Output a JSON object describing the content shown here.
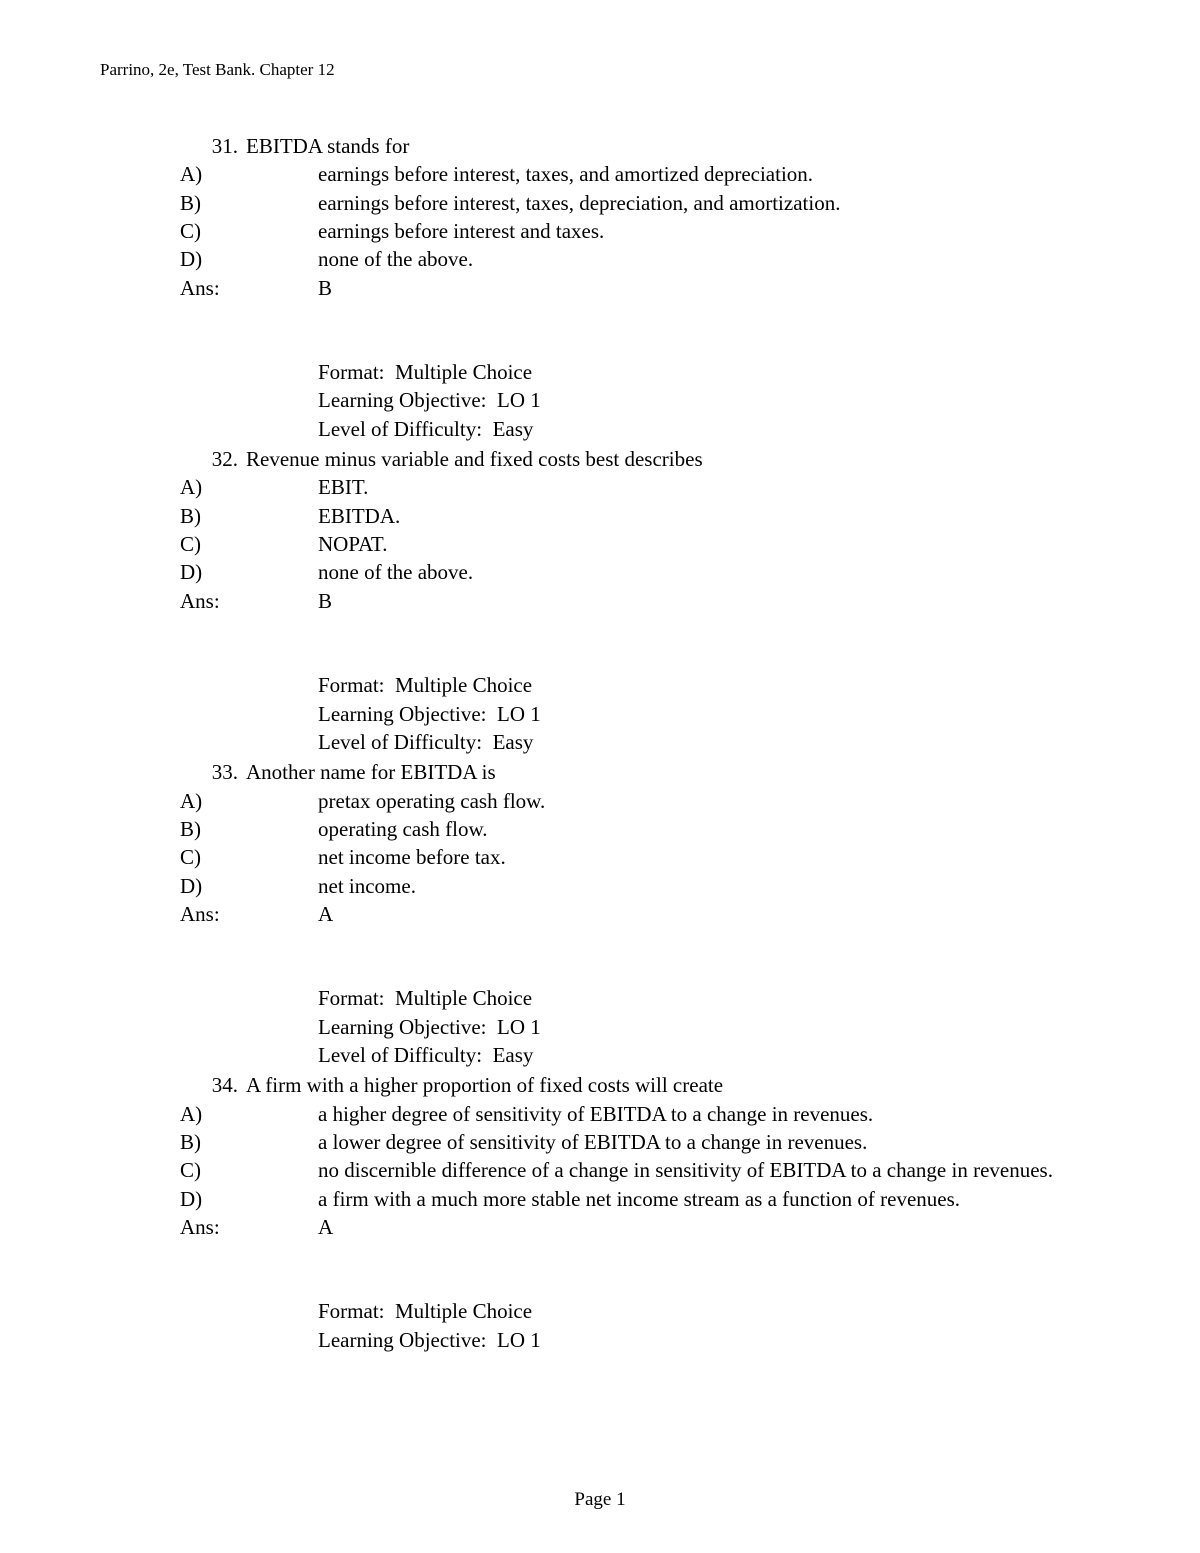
{
  "header": "Parrino, 2e, Test Bank. Chapter 12",
  "footer": "Page 1",
  "ans_label": "Ans:",
  "meta_format_label": "Format:",
  "meta_lo_label": "Learning Objective:",
  "meta_diff_label": "Level of Difficulty:",
  "questions": [
    {
      "num": "31.",
      "stem": "EBITDA stands for",
      "options": [
        {
          "label": "A)",
          "text": "earnings before interest, taxes, and amortized depreciation."
        },
        {
          "label": "B)",
          "text": "earnings before interest, taxes, depreciation, and amortization."
        },
        {
          "label": "C)",
          "text": "earnings before interest and taxes."
        },
        {
          "label": "D)",
          "text": "none of the above."
        }
      ],
      "answer": "B",
      "meta": {
        "format": "Multiple Choice",
        "lo": "LO 1",
        "diff": "Easy"
      }
    },
    {
      "num": "32.",
      "stem": "Revenue minus variable and fixed costs best describes",
      "options": [
        {
          "label": "A)",
          "text": "EBIT."
        },
        {
          "label": "B)",
          "text": "EBITDA."
        },
        {
          "label": "C)",
          "text": "NOPAT."
        },
        {
          "label": "D)",
          "text": "none of the above."
        }
      ],
      "answer": "B",
      "meta": {
        "format": "Multiple Choice",
        "lo": "LO 1",
        "diff": "Easy"
      }
    },
    {
      "num": "33.",
      "stem": "Another name for EBITDA is",
      "options": [
        {
          "label": "A)",
          "text": "pretax operating cash flow."
        },
        {
          "label": "B)",
          "text": "operating cash flow."
        },
        {
          "label": "C)",
          "text": "net income before tax."
        },
        {
          "label": "D)",
          "text": "net income."
        }
      ],
      "answer": "A",
      "meta": {
        "format": "Multiple Choice",
        "lo": "LO 1",
        "diff": "Easy"
      }
    },
    {
      "num": "34.",
      "stem": "A firm with a higher proportion of fixed costs will create",
      "options": [
        {
          "label": "A)",
          "text": "a higher degree of sensitivity of EBITDA to a change in revenues."
        },
        {
          "label": "B)",
          "text": "a lower degree of sensitivity of EBITDA to a change in revenues."
        },
        {
          "label": "C)",
          "text": "no discernible difference of a change in sensitivity of EBITDA to a change in revenues."
        },
        {
          "label": "D)",
          "text": "a firm with a much more stable net income stream as a function of revenues."
        }
      ],
      "answer": "A",
      "meta_partial": {
        "format": "Multiple Choice",
        "lo": "LO 1"
      }
    }
  ]
}
